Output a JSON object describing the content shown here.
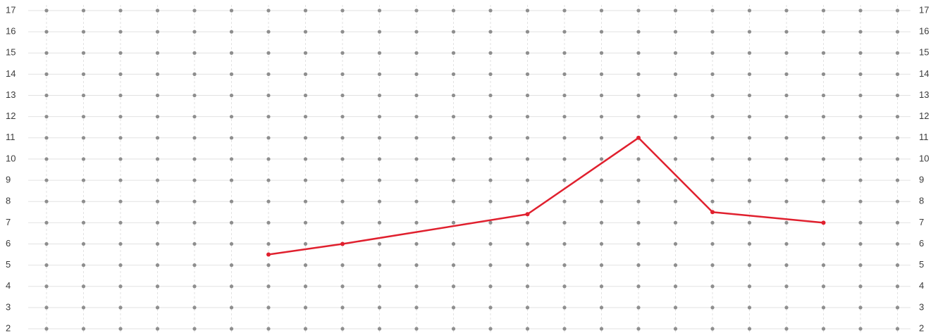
{
  "chart_data": {
    "type": "line",
    "title": "",
    "xlabel": "",
    "ylabel": "",
    "ylim": [
      2,
      17
    ],
    "y_ticks": [
      2,
      3,
      4,
      5,
      6,
      7,
      8,
      9,
      10,
      11,
      12,
      13,
      14,
      15,
      16,
      17
    ],
    "x_count": 24,
    "grid": true,
    "grid_style": "dotted",
    "right_axis_ticks": true,
    "colors": {
      "line": "#e0202e",
      "dot": "#8e8e8e",
      "grid": "#e2e2e2",
      "tick_text": "#3c3c3c"
    },
    "series": [
      {
        "x": [
          6,
          8,
          13,
          16,
          18,
          21
        ],
        "values": [
          5.5,
          6,
          7.4,
          11,
          7.5,
          7
        ]
      }
    ]
  }
}
